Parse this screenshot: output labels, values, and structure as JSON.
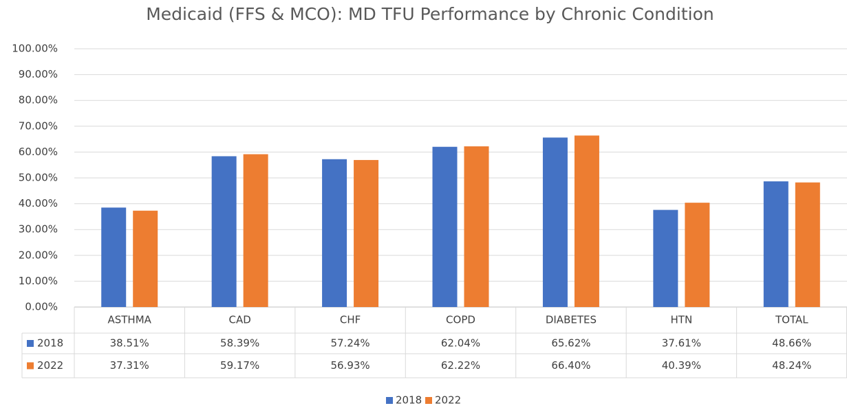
{
  "chart_data": {
    "type": "bar",
    "title": "Medicaid (FFS & MCO): MD TFU Performance by Chronic Condition",
    "categories": [
      "ASTHMA",
      "CAD",
      "CHF",
      "COPD",
      "DIABETES",
      "HTN",
      "TOTAL"
    ],
    "series": [
      {
        "name": "2018",
        "color": "#4472c4",
        "values": [
          38.51,
          58.39,
          57.24,
          62.04,
          65.62,
          37.61,
          48.66
        ],
        "value_labels": [
          "38.51%",
          "58.39%",
          "57.24%",
          "62.04%",
          "65.62%",
          "37.61%",
          "48.66%"
        ]
      },
      {
        "name": "2022",
        "color": "#ed7d31",
        "values": [
          37.31,
          59.17,
          56.93,
          62.22,
          66.4,
          40.39,
          48.24
        ],
        "value_labels": [
          "37.31%",
          "59.17%",
          "56.93%",
          "62.22%",
          "66.40%",
          "40.39%",
          "48.24%"
        ]
      }
    ],
    "ylim": [
      0,
      100
    ],
    "yticks": [
      {
        "value": 0,
        "label": "0.00%"
      },
      {
        "value": 10,
        "label": "10.00%"
      },
      {
        "value": 20,
        "label": "20.00%"
      },
      {
        "value": 30,
        "label": "30.00%"
      },
      {
        "value": 40,
        "label": "40.00%"
      },
      {
        "value": 50,
        "label": "50.00%"
      },
      {
        "value": 60,
        "label": "60.00%"
      },
      {
        "value": 70,
        "label": "70.00%"
      },
      {
        "value": 80,
        "label": "80.00%"
      },
      {
        "value": 90,
        "label": "90.00%"
      },
      {
        "value": 100,
        "label": "100.00%"
      }
    ],
    "grid": true,
    "legend": "bottom"
  }
}
